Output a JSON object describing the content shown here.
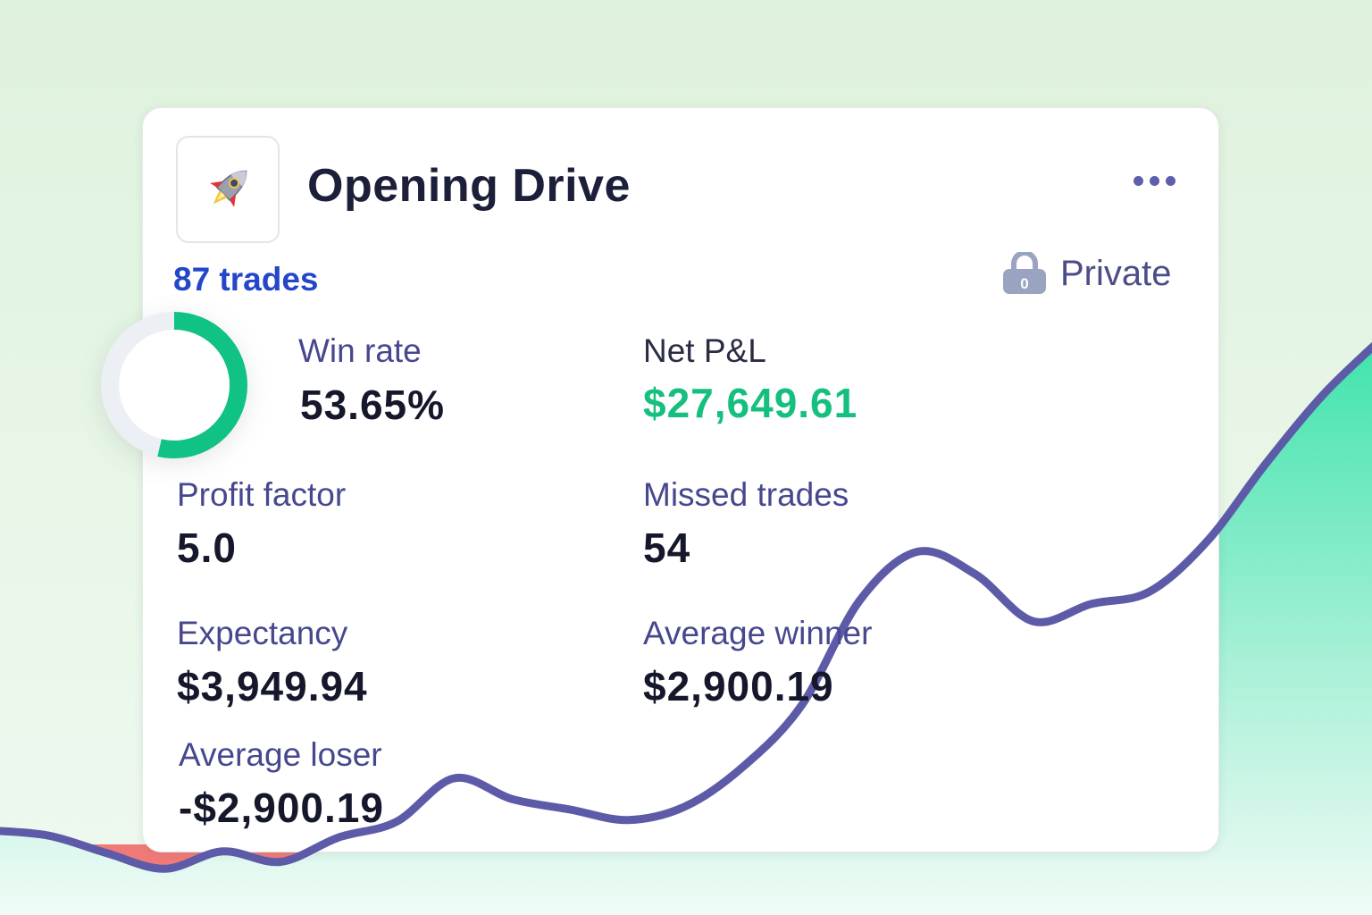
{
  "strategy": {
    "name": "Opening Drive",
    "trades_label": "87 trades",
    "visibility_label": "Private",
    "lock_digit": "0",
    "icon": "rocket-icon"
  },
  "stats": {
    "win_rate": {
      "label": "Win rate",
      "value": "53.65%",
      "fraction": 0.5365
    },
    "net_pnl": {
      "label": "Net P&L",
      "value": "$27,649.61"
    },
    "profit_factor": {
      "label": "Profit factor",
      "value": "5.0"
    },
    "missed_trades": {
      "label": "Missed trades",
      "value": "54"
    },
    "expectancy": {
      "label": "Expectancy",
      "value": "$3,949.94"
    },
    "average_winner": {
      "label": "Average winner",
      "value": "$2,900.19"
    },
    "average_loser": {
      "label": "Average loser",
      "value": "-$2,900.19"
    }
  },
  "colors": {
    "positive": "#15c07f",
    "negative_fill": "#f07a78",
    "line": "#5d5ba8",
    "accent": "#2446c8",
    "donut_track": "#eceff3",
    "donut_fill": "#10c283"
  },
  "chart_data": {
    "type": "area",
    "title": "",
    "xlabel": "",
    "ylabel": "",
    "baseline": 0,
    "values": [
      8,
      5,
      -5,
      -14,
      -4,
      -10,
      4,
      13,
      38,
      26,
      20,
      14,
      22,
      45,
      80,
      140,
      168,
      155,
      128,
      138,
      145,
      174,
      218,
      258,
      290
    ]
  }
}
